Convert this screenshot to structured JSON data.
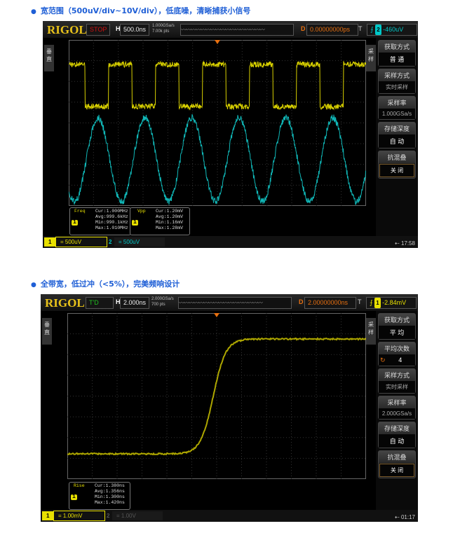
{
  "section1": {
    "heading": "宽范围（500uV/div~10V/div），低底噪，清晰捕获小信号",
    "scope": {
      "logo": "RIGOL",
      "status": "STOP",
      "status_color": "#d01010",
      "h_label": "H",
      "timebase": "500.0ns",
      "sample_rate": "1.000GSa/s",
      "points": "7.00k pts",
      "delay_label": "D",
      "delay": "0.00000000ps",
      "trigger_label": "T",
      "trigger_level": "-460uV",
      "trigger_source": "2",
      "left_tab": "垂直",
      "right_tab": "采样",
      "menu": [
        {
          "title": "获取方式",
          "value": "普  通"
        },
        {
          "title": "采样方式",
          "value": "实时采样"
        },
        {
          "title": "采样率",
          "value": "1.000GSa/s"
        },
        {
          "title": "存储深度",
          "value": "自  动"
        },
        {
          "title": "抗混叠",
          "value": "关  闭"
        }
      ],
      "meas": [
        {
          "name": "Freq",
          "ch": "1",
          "cur": "Cur:1.000MHz",
          "avg": "Avg:999.6kHz",
          "min": "Min:990.1kHz",
          "max": "Max:1.010MHz"
        },
        {
          "name": "Vpp",
          "ch": "1",
          "cur": "Cur:1.20mV",
          "avg": "Avg:1.20mV",
          "min": "Min:1.16mV",
          "max": "Max:1.28mV"
        }
      ],
      "channels": [
        {
          "num": "1",
          "scale": "500uV",
          "color": "#e8e000"
        },
        {
          "num": "2",
          "scale": "500uV",
          "color": "#00c8c8"
        }
      ],
      "time": "17:58"
    }
  },
  "section2": {
    "heading": "全带宽，低过冲（<5%），完美频响设计",
    "scope": {
      "logo": "RIGOL",
      "status": "T'D",
      "status_color": "#20c020",
      "h_label": "H",
      "timebase": "2.000ns",
      "sample_rate": "2.000GSa/s",
      "points": "700 pts",
      "delay_label": "D",
      "delay": "2.00000000ns",
      "trigger_label": "T",
      "trigger_level": "-2.84mV",
      "trigger_source": "1",
      "left_tab": "垂直",
      "right_tab": "采样",
      "menu": [
        {
          "title": "获取方式",
          "value": "平  均"
        },
        {
          "title": "平均次数",
          "value": "4"
        },
        {
          "title": "采样方式",
          "value": "实时采样"
        },
        {
          "title": "采样率",
          "value": "2.000GSa/s"
        },
        {
          "title": "存储深度",
          "value": "自  动"
        },
        {
          "title": "抗混叠",
          "value": "关  闭"
        }
      ],
      "meas": [
        {
          "name": "Rise",
          "ch": "1",
          "cur": "Cur:1.380ns",
          "avg": "Avg:1.356ns",
          "min": "Min:1.300ns",
          "max": "Max:1.420ns"
        }
      ],
      "channels": [
        {
          "num": "1",
          "scale": "1.00mV",
          "color": "#e8e000"
        },
        {
          "num": "2",
          "scale": "1.00V",
          "color": "#555555"
        }
      ],
      "time": "01:17"
    }
  }
}
